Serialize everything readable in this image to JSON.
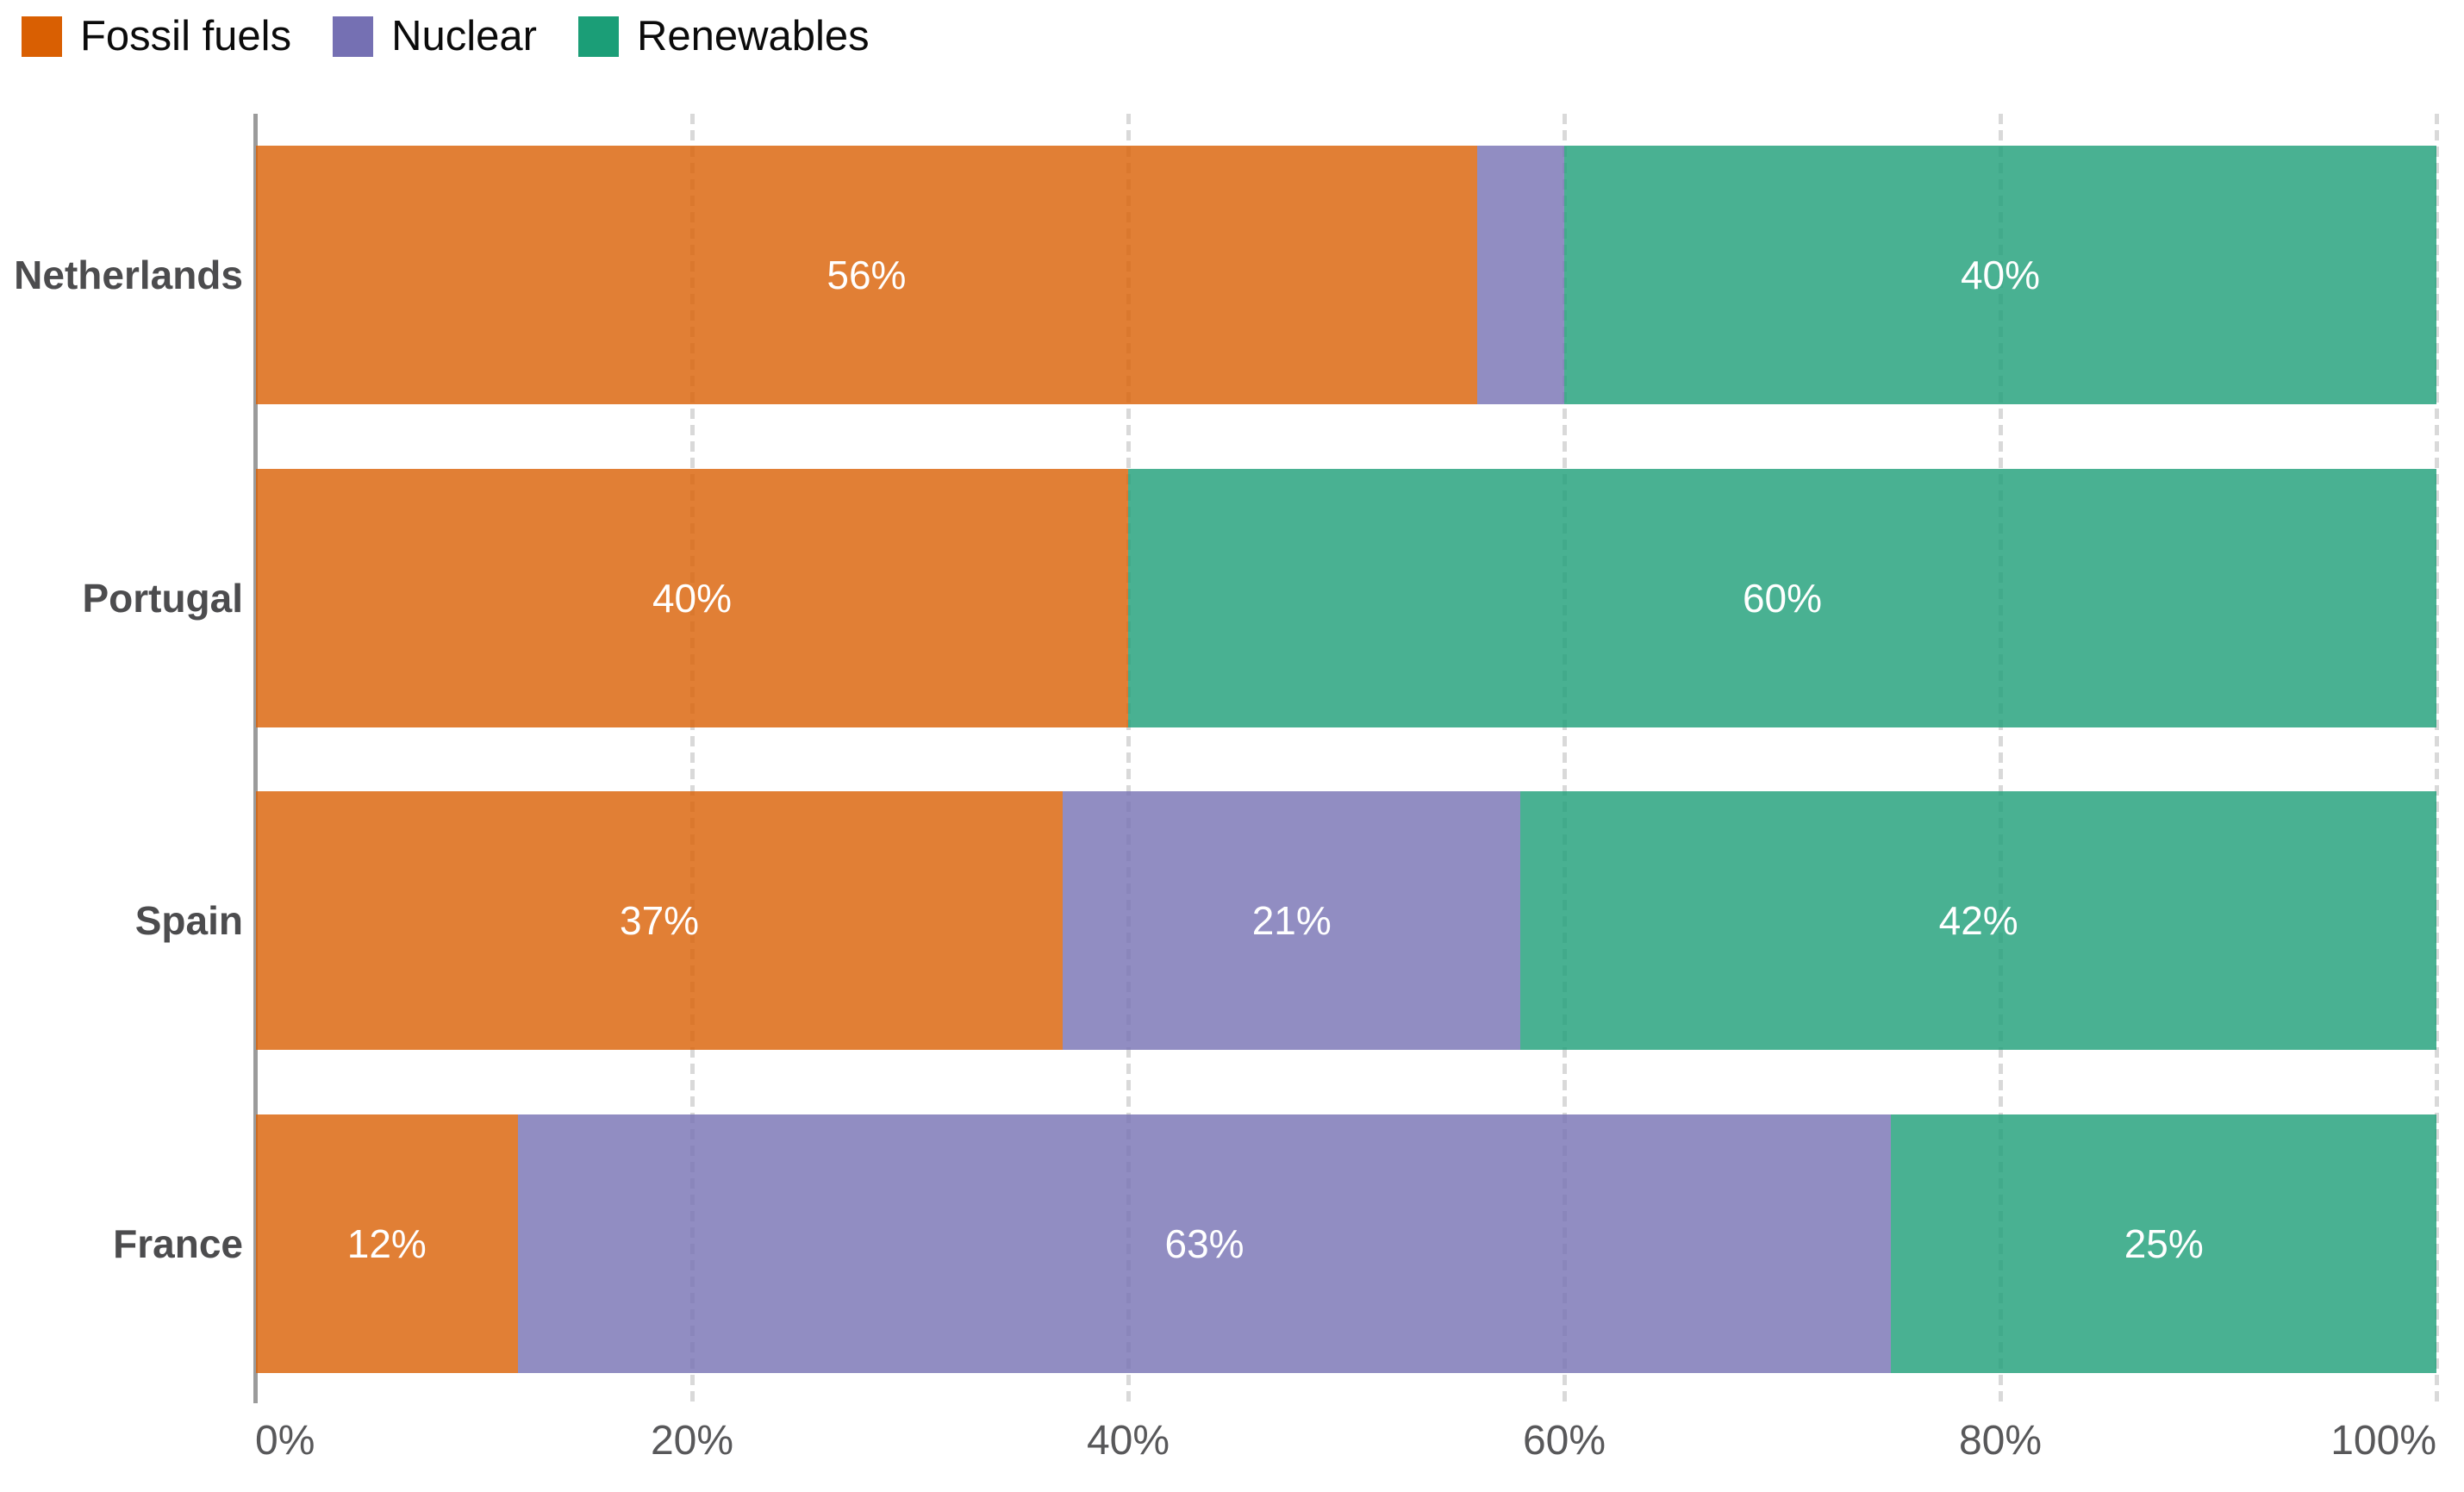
{
  "legend": {
    "items": [
      {
        "label": "Fossil fuels",
        "color": "#D95F02"
      },
      {
        "label": "Nuclear",
        "color": "#7570B3"
      },
      {
        "label": "Renewables",
        "color": "#1B9E77"
      }
    ]
  },
  "chart_data": {
    "type": "bar",
    "orientation": "horizontal",
    "stacked": true,
    "unit": "%",
    "categories": [
      "Netherlands",
      "Portugal",
      "Spain",
      "France"
    ],
    "series": [
      {
        "name": "Fossil fuels",
        "color": "#D95F02",
        "bar_color": "rgba(217,95,2,0.8)",
        "values": [
          56,
          40,
          37,
          12
        ]
      },
      {
        "name": "Nuclear",
        "color": "#7570B3",
        "bar_color": "rgba(117,112,179,0.8)",
        "values": [
          4,
          0,
          21,
          63
        ]
      },
      {
        "name": "Renewables",
        "color": "#1B9E77",
        "bar_color": "rgba(27,158,119,0.8)",
        "values": [
          40,
          60,
          42,
          25
        ]
      }
    ],
    "segment_labels": [
      [
        "56%",
        "",
        "40%"
      ],
      [
        "40%",
        "",
        "60%"
      ],
      [
        "37%",
        "21%",
        "42%"
      ],
      [
        "12%",
        "63%",
        "25%"
      ]
    ],
    "x_ticks": [
      {
        "value": 0,
        "label": "0%"
      },
      {
        "value": 20,
        "label": "20%"
      },
      {
        "value": 40,
        "label": "40%"
      },
      {
        "value": 60,
        "label": "60%"
      },
      {
        "value": 80,
        "label": "80%"
      },
      {
        "value": 100,
        "label": "100%"
      }
    ],
    "xlim": [
      0,
      100
    ],
    "title": "",
    "xlabel": "",
    "ylabel": "",
    "grid": "vertical dashed gridlines at 20% steps",
    "legend_position": "top-left",
    "axis_line_color": "#9b9b9b",
    "gridline_color": "#d9d9d9",
    "value_label_color": "#ffffff",
    "category_label_color": "#4c4c4e",
    "tick_label_color": "#58585a"
  }
}
